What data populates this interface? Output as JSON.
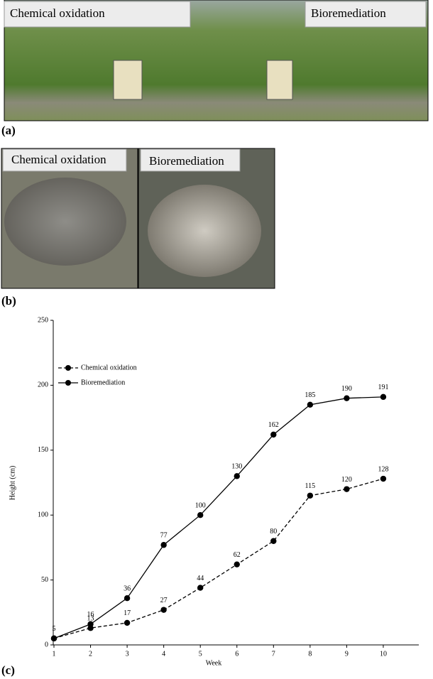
{
  "panels": [
    {
      "label": "(a)",
      "captions": [
        "Chemical oxidation",
        "Bioremediation"
      ]
    },
    {
      "label": "(b)",
      "captions": [
        "Chemical oxidation",
        "Bioremediation"
      ]
    },
    {
      "label": "(c)"
    }
  ],
  "chart_data": {
    "type": "line",
    "x_label": "Week",
    "y_label": "Height (cm)",
    "x": [
      1,
      2,
      3,
      4,
      5,
      6,
      7,
      8,
      9,
      10
    ],
    "series": [
      {
        "name": "Chemical oxidation",
        "color": "#000000",
        "line_style": "dashed",
        "values": [
          5,
          13,
          17,
          27,
          44,
          62,
          80,
          115,
          120,
          128
        ]
      },
      {
        "name": "Bioremediation",
        "color": "#000000",
        "line_style": "solid",
        "values": [
          5,
          16,
          36,
          77,
          100,
          130,
          162,
          185,
          190,
          191
        ]
      }
    ],
    "xlim": [
      1,
      11
    ],
    "xticks": [
      1,
      2,
      3,
      4,
      5,
      6,
      7,
      8,
      9,
      10
    ],
    "ylim": [
      0,
      250
    ],
    "yticks": [
      0,
      50,
      100,
      150,
      200,
      250
    ],
    "legend": "upper left"
  }
}
